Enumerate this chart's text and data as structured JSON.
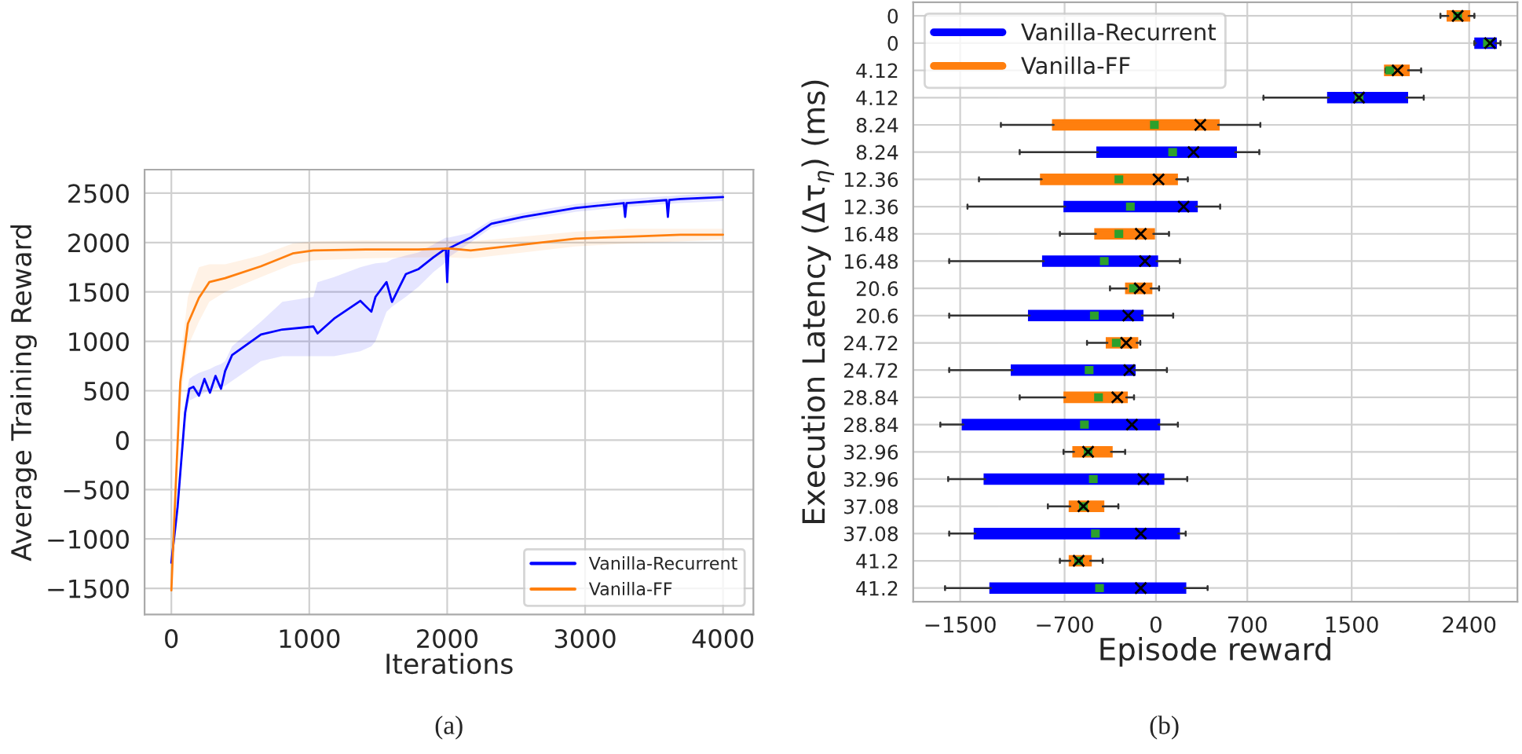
{
  "chart_data": [
    {
      "type": "line",
      "xlabel": "Iterations",
      "ylabel": "Average Training Reward",
      "annotations": [
        "(a)"
      ],
      "xlim": [
        -194,
        4220
      ],
      "ylim": [
        -1765,
        2738
      ],
      "xticks": [
        0,
        1000,
        2000,
        3000,
        4000
      ],
      "yticks": [
        {
          "value": -1500,
          "label": "−1500"
        },
        {
          "value": -1000,
          "label": "−1000"
        },
        {
          "value": -500,
          "label": "−500"
        },
        0,
        500,
        1000,
        1500,
        2000,
        2500
      ],
      "grid": true,
      "legend": "lower right",
      "series": [
        {
          "name": "Vanilla-Recurrent",
          "color": "#0000ff",
          "x": [
            0,
            45,
            100,
            130,
            160,
            200,
            240,
            280,
            320,
            360,
            390,
            440,
            650,
            805,
            1030,
            1060,
            1180,
            1370,
            1450,
            1480,
            1560,
            1600,
            1700,
            1790,
            1900,
            1990,
            2000,
            2010,
            2170,
            2320,
            2550,
            2930,
            3280,
            3290,
            3300,
            3590,
            3600,
            3610,
            3690,
            4000
          ],
          "values": [
            -1240,
            -680,
            280,
            520,
            540,
            450,
            620,
            480,
            650,
            520,
            700,
            860,
            1070,
            1120,
            1150,
            1080,
            1230,
            1410,
            1300,
            1450,
            1600,
            1400,
            1680,
            1730,
            1850,
            1940,
            1600,
            1940,
            2050,
            2190,
            2260,
            2350,
            2400,
            2260,
            2400,
            2430,
            2260,
            2430,
            2440,
            2460
          ],
          "lower": [
            -1300,
            -800,
            150,
            400,
            420,
            450,
            480,
            500,
            520,
            540,
            550,
            600,
            800,
            850,
            850,
            850,
            850,
            900,
            950,
            1000,
            1300,
            1350,
            1450,
            1550,
            1700,
            1800,
            1800,
            1850,
            2000,
            2150,
            2220,
            2310,
            2360,
            2360,
            2360,
            2390,
            2390,
            2390,
            2400,
            2420
          ],
          "upper": [
            -1150,
            -550,
            400,
            620,
            650,
            680,
            700,
            720,
            750,
            770,
            800,
            950,
            1200,
            1400,
            1450,
            1600,
            1650,
            1750,
            1780,
            1790,
            1800,
            1830,
            1870,
            1900,
            1980,
            2050,
            2050,
            2050,
            2100,
            2230,
            2300,
            2390,
            2440,
            2440,
            2440,
            2470,
            2470,
            2470,
            2480,
            2500
          ]
        },
        {
          "name": "Vanilla-FF",
          "color": "#ff7f0e",
          "x": [
            0,
            25,
            65,
            120,
            200,
            275,
            390,
            650,
            880,
            1030,
            1410,
            1790,
            2020,
            2170,
            2550,
            2930,
            3310,
            3690,
            4000
          ],
          "values": [
            -1520,
            -680,
            590,
            1180,
            1440,
            1600,
            1640,
            1760,
            1890,
            1920,
            1930,
            1930,
            1940,
            1920,
            1980,
            2040,
            2060,
            2080,
            2080
          ],
          "lower": [
            -1600,
            -800,
            400,
            950,
            1200,
            1400,
            1500,
            1650,
            1780,
            1820,
            1840,
            1850,
            1850,
            1840,
            1900,
            1960,
            1990,
            2010,
            2030
          ],
          "upper": [
            -1450,
            -550,
            800,
            1450,
            1750,
            1780,
            1780,
            1870,
            1990,
            2010,
            2020,
            2010,
            2020,
            2010,
            2060,
            2110,
            2140,
            2140,
            2140
          ]
        }
      ]
    },
    {
      "type": "box",
      "orientation": "horizontal",
      "xlabel": "Episode reward",
      "ylabel": "Execution Latency (Δτ$_{η}$) (ms)",
      "annotations": [
        "(b)"
      ],
      "categories": [
        "0",
        "0",
        "4.12",
        "4.12",
        "8.24",
        "8.24",
        "12.36",
        "12.36",
        "16.48",
        "16.48",
        "20.6",
        "20.6",
        "24.72",
        "24.72",
        "28.84",
        "28.84",
        "32.96",
        "32.96",
        "37.08",
        "37.08",
        "41.2",
        "41.2"
      ],
      "xlim": [
        -1860,
        2770
      ],
      "xticks": [
        {
          "value": -1500,
          "label": "−1500"
        },
        {
          "value": -700,
          "label": "−700"
        },
        0,
        700,
        1500,
        2400
      ],
      "grid": true,
      "legend": "top left",
      "series": [
        {
          "name": "Vanilla-Recurrent",
          "color": "#0000ff",
          "boxes": [
            null,
            {
              "low": 2440,
              "q1": 2452,
              "median": 2540,
              "q3": 2600,
              "high": 2640,
              "mean": 2560
            },
            null,
            {
              "low": 824,
              "q1": 1324,
              "median": 1556,
              "q3": 1920,
              "high": 2052,
              "mean": 1556
            },
            null,
            {
              "low": -1044,
              "q1": -444,
              "median": 128,
              "q3": 608,
              "high": 792,
              "mean": 288
            },
            null,
            {
              "low": -1444,
              "q1": -696,
              "median": -196,
              "q3": 308,
              "high": 492,
              "mean": 212
            },
            null,
            {
              "low": -1584,
              "q1": -860,
              "median": -396,
              "q3": 4,
              "high": 184,
              "mean": -84
            },
            null,
            {
              "low": -1584,
              "q1": -968,
              "median": -472,
              "q3": -108,
              "high": 132,
              "mean": -212
            },
            null,
            {
              "low": -1584,
              "q1": -1100,
              "median": -512,
              "q3": -168,
              "high": 84,
              "mean": -204
            },
            null,
            {
              "low": -1652,
              "q1": -1476,
              "median": -548,
              "q3": 20,
              "high": 168,
              "mean": -184
            },
            null,
            {
              "low": -1592,
              "q1": -1308,
              "median": -480,
              "q3": 52,
              "high": 240,
              "mean": -96
            },
            null,
            {
              "low": -1584,
              "q1": -1384,
              "median": -464,
              "q3": 172,
              "high": 228,
              "mean": -116
            },
            null,
            {
              "low": -1616,
              "q1": -1264,
              "median": -432,
              "q3": 220,
              "high": 396,
              "mean": -116
            }
          ]
        },
        {
          "name": "Vanilla-FF",
          "color": "#ff7f0e",
          "boxes": [
            {
              "low": 2180,
              "q1": 2240,
              "median": 2312,
              "q3": 2396,
              "high": 2440,
              "mean": 2312
            },
            null,
            {
              "low": 1760,
              "q1": 1760,
              "median": 1792,
              "q3": 1932,
              "high": 2032,
              "mean": 1852
            },
            null,
            {
              "low": -1188,
              "q1": -784,
              "median": -12,
              "q3": 476,
              "high": 800,
              "mean": 340
            },
            null,
            {
              "low": -1356,
              "q1": -876,
              "median": -284,
              "q3": 156,
              "high": 244,
              "mean": 20
            },
            null,
            {
              "low": -736,
              "q1": -460,
              "median": -284,
              "q3": -20,
              "high": 100,
              "mean": -116
            },
            null,
            {
              "low": -352,
              "q1": -224,
              "median": -172,
              "q3": -40,
              "high": 24,
              "mean": -124
            },
            null,
            {
              "low": -528,
              "q1": -372,
              "median": -304,
              "q3": -148,
              "high": -120,
              "mean": -228
            },
            null,
            {
              "low": -1044,
              "q1": -696,
              "median": -440,
              "q3": -228,
              "high": -168,
              "mean": -296
            },
            null,
            {
              "low": -708,
              "q1": -628,
              "median": -520,
              "q3": -344,
              "high": -236,
              "mean": -520
            },
            null,
            {
              "low": -828,
              "q1": -656,
              "median": -556,
              "q3": -408,
              "high": -288,
              "mean": -556
            },
            null,
            {
              "low": -736,
              "q1": -656,
              "median": -592,
              "q3": -504,
              "high": -408,
              "mean": -592
            },
            null
          ]
        }
      ]
    }
  ]
}
